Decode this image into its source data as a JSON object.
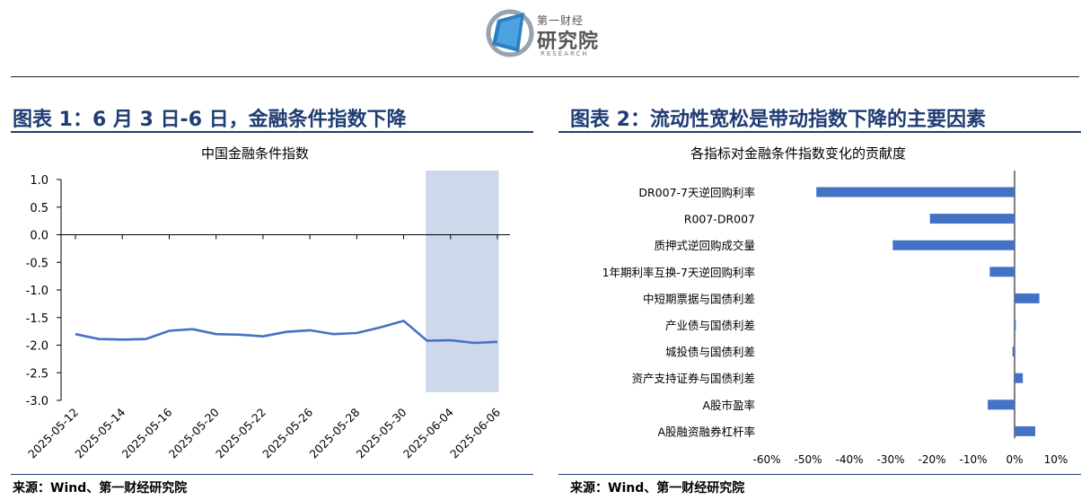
{
  "header": {
    "logo_small": "第一财经",
    "logo_big": "研究院",
    "logo_en": "RESEARCH"
  },
  "left": {
    "panel_title": "图表 1：6 月 3 日-6 日，金融条件指数下降",
    "source": "来源：Wind、第一财经研究院"
  },
  "right": {
    "panel_title": "图表 2：流动性宽松是带动指数下降的主要因素",
    "source": "来源：Wind、第一财经研究院"
  },
  "chart_data": [
    {
      "type": "line",
      "title": "中国金融条件指数",
      "x_tick_labels": [
        "2025-05-12",
        "2025-05-14",
        "2025-05-16",
        "2025-05-20",
        "2025-05-22",
        "2025-05-26",
        "2025-05-28",
        "2025-05-30",
        "2025-06-04",
        "2025-06-06"
      ],
      "y_tick_labels": [
        "1.0",
        "0.5",
        "0.0",
        "-0.5",
        "-1.0",
        "-1.5",
        "-2.0",
        "-2.5",
        "-3.0"
      ],
      "ylim": [
        -3.0,
        1.0
      ],
      "values": [
        -1.8,
        -1.89,
        -1.9,
        -1.89,
        -1.74,
        -1.71,
        -1.8,
        -1.81,
        -1.84,
        -1.76,
        -1.73,
        -1.8,
        -1.78,
        -1.68,
        -1.56,
        -1.92,
        -1.91,
        -1.96,
        -1.94
      ],
      "series_color": "#4472c4",
      "highlight": {
        "from_index": 15,
        "to_index": 18,
        "color": "#cdd8eb"
      },
      "grid": false
    },
    {
      "type": "bar",
      "orientation": "horizontal",
      "title": "各指标对金融条件指数变化的贡献度",
      "categories": [
        "DR007-7天逆回购利率",
        "R007-DR007",
        "质押式逆回购成交量",
        "1年期利率互换-7天逆回购利率",
        "中短期票据与国债利差",
        "产业债与国债利差",
        "城投债与国债利差",
        "资产支持证券与国债利差",
        "A股市盈率",
        "A股融资融券杠杆率"
      ],
      "values": [
        -48,
        -20.5,
        -29.5,
        -6,
        6,
        0.3,
        -0.5,
        2,
        -6.5,
        5
      ],
      "x_tick_labels": [
        "-60%",
        "-50%",
        "-40%",
        "-30%",
        "-20%",
        "-10%",
        "0%",
        "10%"
      ],
      "xlim": [
        -60,
        10
      ],
      "bar_color": "#4472c4"
    }
  ]
}
